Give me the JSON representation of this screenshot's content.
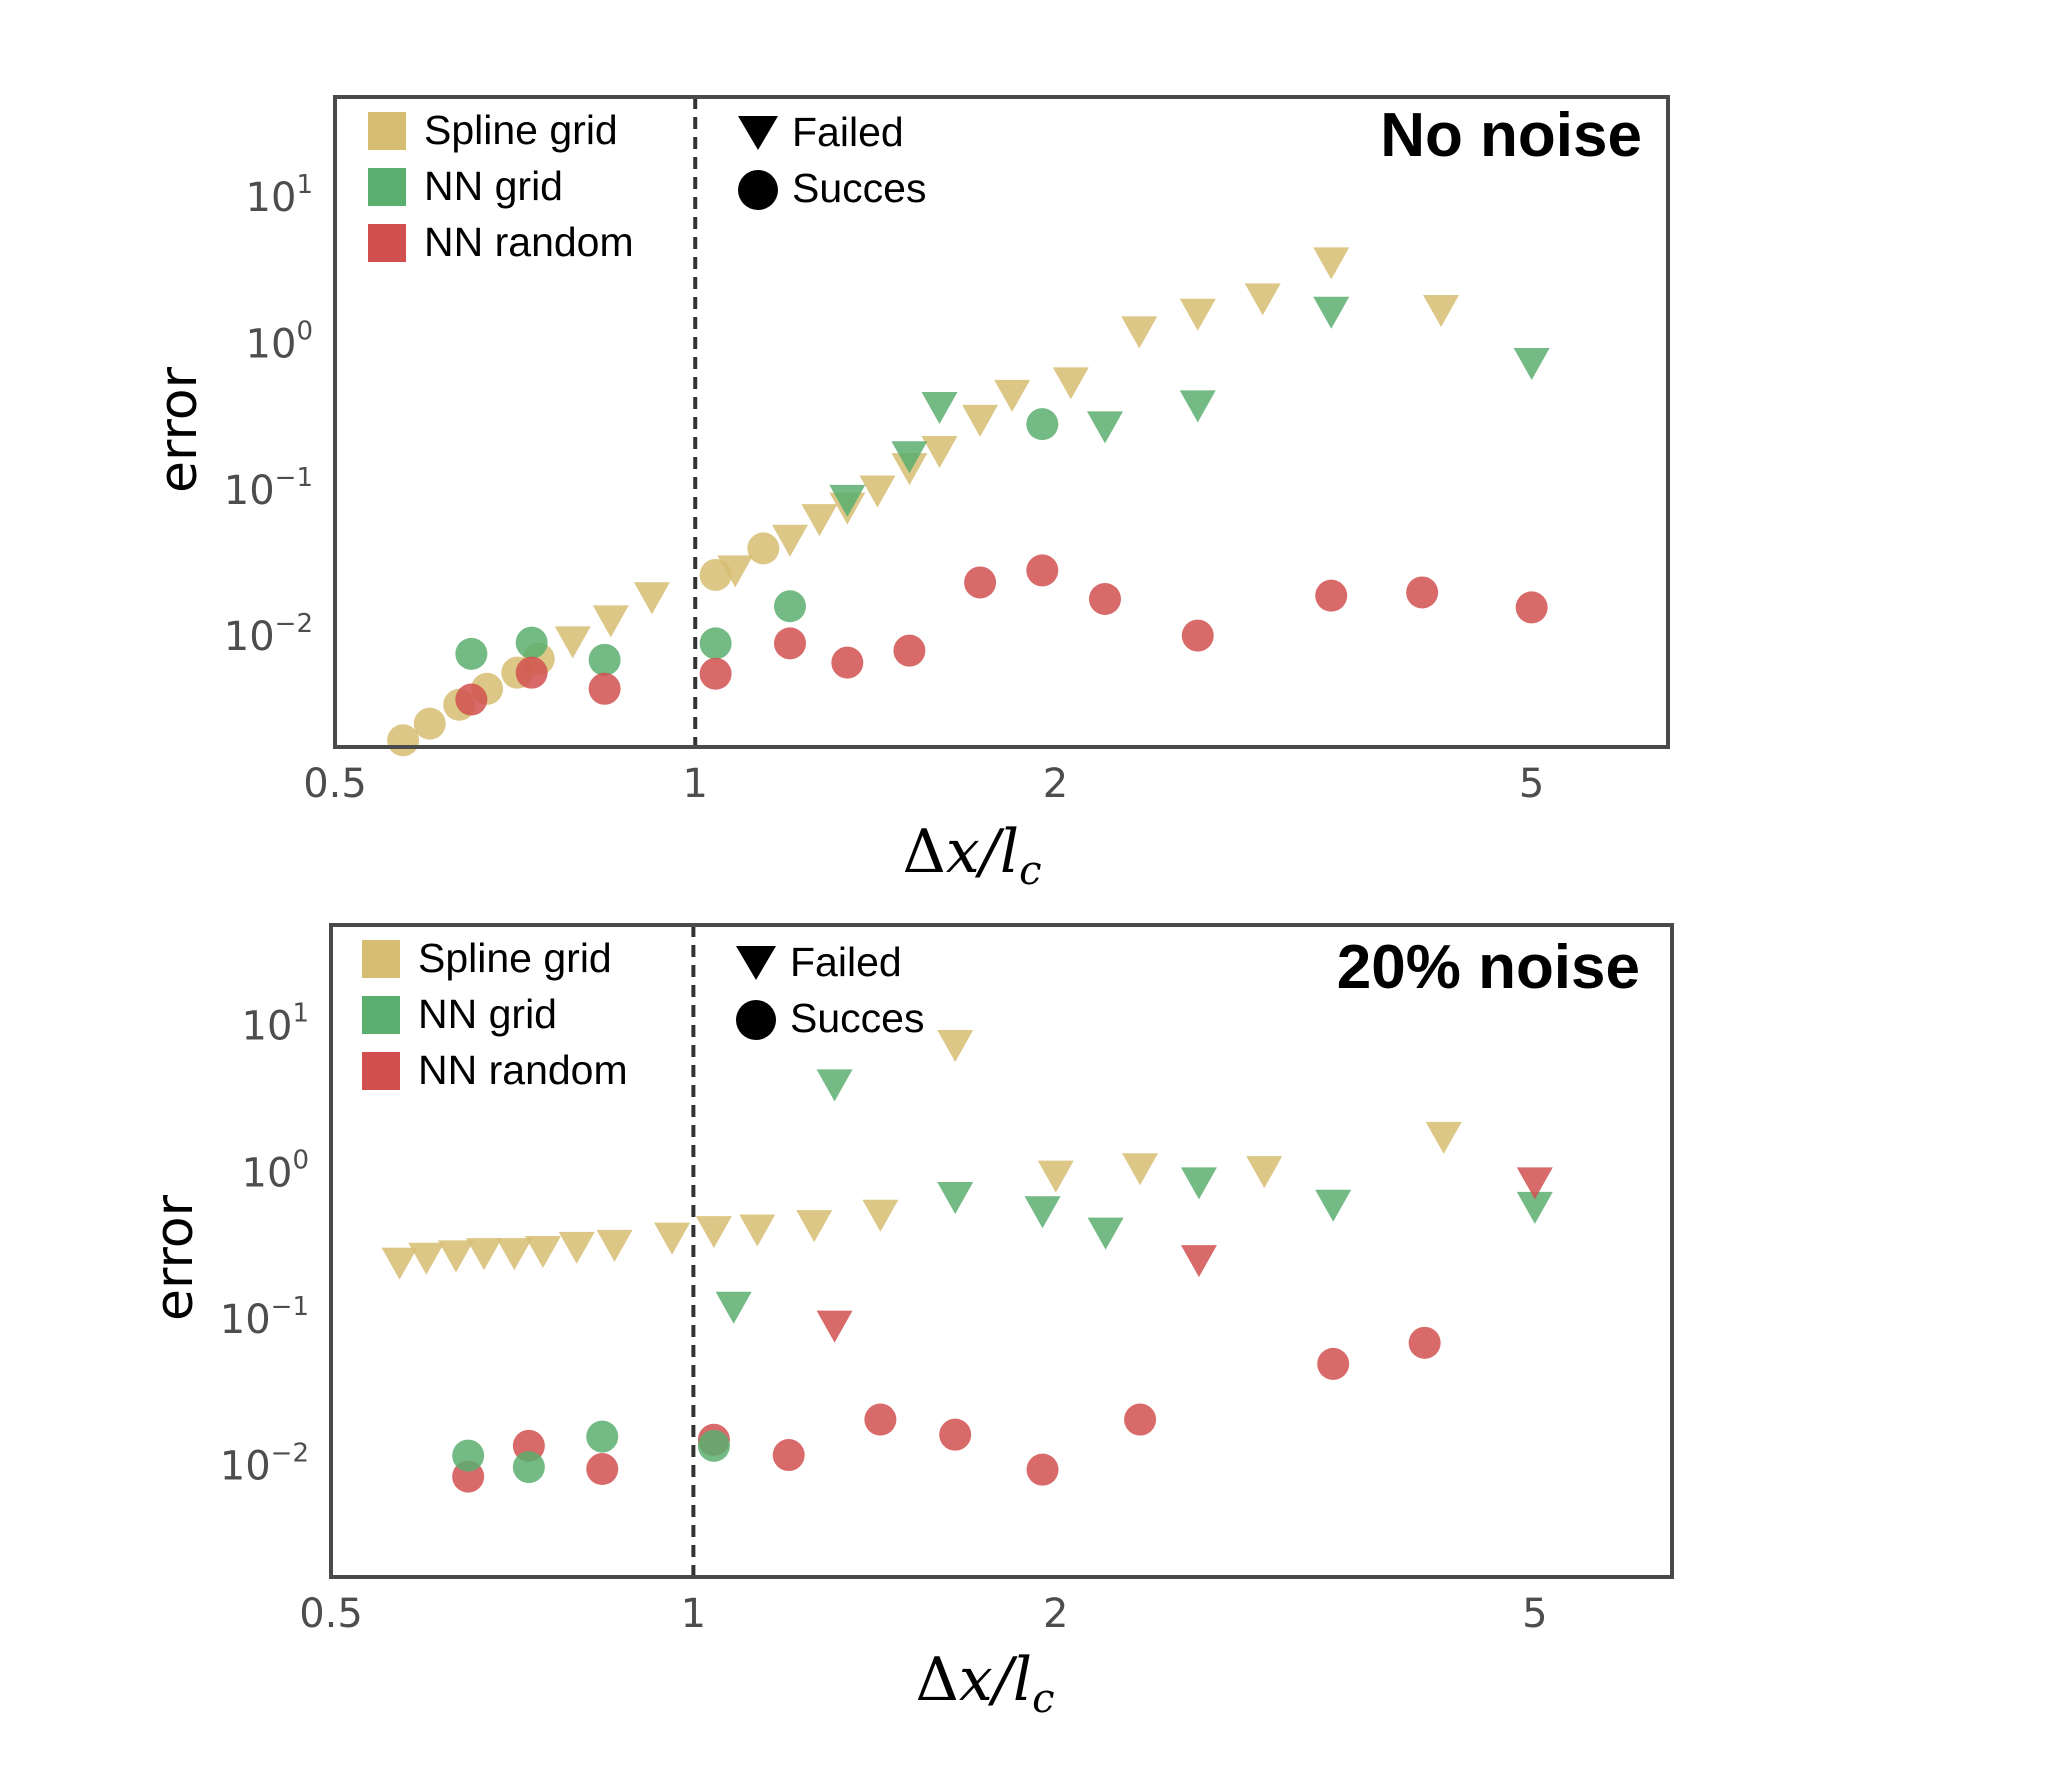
{
  "colors": {
    "spline_grid": "#d6bd72",
    "nn_grid": "#5aae6e",
    "nn_random": "#d1504f",
    "frame": "#4a4a4a",
    "vline": "#333333"
  },
  "chart_data": [
    {
      "type": "scatter",
      "title": "No noise",
      "xlabel": "Δx/l_c",
      "ylabel": "error",
      "xscale": "log",
      "yscale": "log",
      "xlim": [
        0.5,
        6.5
      ],
      "ylim": [
        0.0018,
        50
      ],
      "x_ticks": [
        "0.5",
        "1",
        "2",
        "5"
      ],
      "y_ticks": [
        {
          "base": "10",
          "exp": "−2"
        },
        {
          "base": "10",
          "exp": "−1"
        },
        {
          "base": "10",
          "exp": "0"
        },
        {
          "base": "10",
          "exp": "1"
        }
      ],
      "reference_line_x": 1,
      "legend_series": [
        "Spline grid",
        "NN grid",
        "NN random"
      ],
      "legend_markers": [
        "Failed",
        "Succes"
      ],
      "series": [
        {
          "name": "Spline grid",
          "color_key": "spline_grid",
          "points": [
            {
              "x": 0.57,
              "y": 0.002,
              "m": "succes"
            },
            {
              "x": 0.6,
              "y": 0.0026,
              "m": "succes"
            },
            {
              "x": 0.635,
              "y": 0.0035,
              "m": "succes"
            },
            {
              "x": 0.67,
              "y": 0.0045,
              "m": "succes"
            },
            {
              "x": 0.71,
              "y": 0.0058,
              "m": "succes"
            },
            {
              "x": 0.74,
              "y": 0.0072,
              "m": "succes"
            },
            {
              "x": 0.79,
              "y": 0.0095,
              "m": "failed"
            },
            {
              "x": 0.85,
              "y": 0.0132,
              "m": "failed"
            },
            {
              "x": 0.92,
              "y": 0.019,
              "m": "failed"
            },
            {
              "x": 1.04,
              "y": 0.027,
              "m": "succes"
            },
            {
              "x": 1.08,
              "y": 0.029,
              "m": "failed"
            },
            {
              "x": 1.14,
              "y": 0.041,
              "m": "succes"
            },
            {
              "x": 1.2,
              "y": 0.047,
              "m": "failed"
            },
            {
              "x": 1.27,
              "y": 0.065,
              "m": "failed"
            },
            {
              "x": 1.34,
              "y": 0.078,
              "m": "failed"
            },
            {
              "x": 1.42,
              "y": 0.102,
              "m": "failed"
            },
            {
              "x": 1.51,
              "y": 0.145,
              "m": "failed"
            },
            {
              "x": 1.6,
              "y": 0.19,
              "m": "failed"
            },
            {
              "x": 1.73,
              "y": 0.31,
              "m": "failed"
            },
            {
              "x": 1.84,
              "y": 0.46,
              "m": "failed"
            },
            {
              "x": 2.06,
              "y": 0.56,
              "m": "failed"
            },
            {
              "x": 2.35,
              "y": 1.25,
              "m": "failed"
            },
            {
              "x": 2.63,
              "y": 1.65,
              "m": "failed"
            },
            {
              "x": 2.98,
              "y": 2.1,
              "m": "failed"
            },
            {
              "x": 3.4,
              "y": 3.7,
              "m": "failed"
            },
            {
              "x": 4.2,
              "y": 1.75,
              "m": "failed"
            }
          ]
        },
        {
          "name": "NN grid",
          "color_key": "nn_grid",
          "points": [
            {
              "x": 0.65,
              "y": 0.0078,
              "m": "succes"
            },
            {
              "x": 0.73,
              "y": 0.0093,
              "m": "succes"
            },
            {
              "x": 0.84,
              "y": 0.0071,
              "m": "succes"
            },
            {
              "x": 1.04,
              "y": 0.0092,
              "m": "succes"
            },
            {
              "x": 1.2,
              "y": 0.0165,
              "m": "succes"
            },
            {
              "x": 1.34,
              "y": 0.088,
              "m": "failed"
            },
            {
              "x": 1.51,
              "y": 0.175,
              "m": "failed"
            },
            {
              "x": 1.6,
              "y": 0.38,
              "m": "failed"
            },
            {
              "x": 1.95,
              "y": 0.29,
              "m": "succes"
            },
            {
              "x": 2.2,
              "y": 0.28,
              "m": "failed"
            },
            {
              "x": 2.63,
              "y": 0.39,
              "m": "failed"
            },
            {
              "x": 3.4,
              "y": 1.7,
              "m": "failed"
            },
            {
              "x": 5.0,
              "y": 0.76,
              "m": "failed"
            }
          ]
        },
        {
          "name": "NN random",
          "color_key": "nn_random",
          "points": [
            {
              "x": 0.65,
              "y": 0.0038,
              "m": "succes"
            },
            {
              "x": 0.73,
              "y": 0.0058,
              "m": "succes"
            },
            {
              "x": 0.84,
              "y": 0.0045,
              "m": "succes"
            },
            {
              "x": 1.04,
              "y": 0.0057,
              "m": "succes"
            },
            {
              "x": 1.2,
              "y": 0.0092,
              "m": "succes"
            },
            {
              "x": 1.34,
              "y": 0.0068,
              "m": "succes"
            },
            {
              "x": 1.51,
              "y": 0.0082,
              "m": "succes"
            },
            {
              "x": 1.73,
              "y": 0.024,
              "m": "succes"
            },
            {
              "x": 1.95,
              "y": 0.029,
              "m": "succes"
            },
            {
              "x": 2.2,
              "y": 0.0185,
              "m": "succes"
            },
            {
              "x": 2.63,
              "y": 0.0104,
              "m": "succes"
            },
            {
              "x": 3.4,
              "y": 0.0195,
              "m": "succes"
            },
            {
              "x": 4.05,
              "y": 0.0205,
              "m": "succes"
            },
            {
              "x": 5.0,
              "y": 0.0162,
              "m": "succes"
            }
          ]
        }
      ]
    },
    {
      "type": "scatter",
      "title": "20% noise",
      "xlabel": "Δx/l_c",
      "ylabel": "error",
      "xscale": "log",
      "yscale": "log",
      "xlim": [
        0.5,
        6.5
      ],
      "ylim": [
        0.0018,
        50
      ],
      "x_ticks": [
        "0.5",
        "1",
        "2",
        "5"
      ],
      "y_ticks": [
        {
          "base": "10",
          "exp": "−2"
        },
        {
          "base": "10",
          "exp": "−1"
        },
        {
          "base": "10",
          "exp": "0"
        },
        {
          "base": "10",
          "exp": "1"
        }
      ],
      "reference_line_x": 1,
      "legend_series": [
        "Spline grid",
        "NN grid",
        "NN random"
      ],
      "legend_markers": [
        "Failed",
        "Succes"
      ],
      "series": [
        {
          "name": "Spline grid",
          "color_key": "spline_grid",
          "points": [
            {
              "x": 0.57,
              "y": 0.25,
              "m": "failed"
            },
            {
              "x": 0.6,
              "y": 0.27,
              "m": "failed"
            },
            {
              "x": 0.635,
              "y": 0.28,
              "m": "failed"
            },
            {
              "x": 0.67,
              "y": 0.29,
              "m": "failed"
            },
            {
              "x": 0.71,
              "y": 0.29,
              "m": "failed"
            },
            {
              "x": 0.75,
              "y": 0.3,
              "m": "failed"
            },
            {
              "x": 0.8,
              "y": 0.32,
              "m": "failed"
            },
            {
              "x": 0.86,
              "y": 0.33,
              "m": "failed"
            },
            {
              "x": 0.96,
              "y": 0.37,
              "m": "failed"
            },
            {
              "x": 1.04,
              "y": 0.41,
              "m": "failed"
            },
            {
              "x": 1.13,
              "y": 0.42,
              "m": "failed"
            },
            {
              "x": 1.26,
              "y": 0.45,
              "m": "failed"
            },
            {
              "x": 1.43,
              "y": 0.53,
              "m": "failed"
            },
            {
              "x": 1.65,
              "y": 7.6,
              "m": "failed"
            },
            {
              "x": 2.0,
              "y": 0.98,
              "m": "failed"
            },
            {
              "x": 2.35,
              "y": 1.1,
              "m": "failed"
            },
            {
              "x": 2.98,
              "y": 1.05,
              "m": "failed"
            },
            {
              "x": 4.2,
              "y": 1.8,
              "m": "failed"
            }
          ]
        },
        {
          "name": "NN grid",
          "color_key": "nn_grid",
          "points": [
            {
              "x": 1.08,
              "y": 0.125,
              "m": "failed"
            },
            {
              "x": 1.31,
              "y": 4.1,
              "m": "failed"
            },
            {
              "x": 1.65,
              "y": 0.7,
              "m": "failed"
            },
            {
              "x": 1.95,
              "y": 0.56,
              "m": "failed"
            },
            {
              "x": 2.2,
              "y": 0.4,
              "m": "failed"
            },
            {
              "x": 2.63,
              "y": 0.88,
              "m": "failed"
            },
            {
              "x": 3.4,
              "y": 0.62,
              "m": "failed"
            },
            {
              "x": 5.0,
              "y": 0.6,
              "m": "failed"
            }
          ]
        },
        {
          "name": "NN random",
          "color_key": "nn_random",
          "points": [
            {
              "x": 1.31,
              "y": 0.093,
              "m": "failed"
            },
            {
              "x": 2.63,
              "y": 0.26,
              "m": "failed"
            },
            {
              "x": 5.0,
              "y": 0.88,
              "m": "failed"
            },
            {
              "x": 0.65,
              "y": 0.0087,
              "m": "succes"
            },
            {
              "x": 0.73,
              "y": 0.0141,
              "m": "succes"
            },
            {
              "x": 0.84,
              "y": 0.0098,
              "m": "succes"
            },
            {
              "x": 1.04,
              "y": 0.0155,
              "m": "succes"
            },
            {
              "x": 1.2,
              "y": 0.0122,
              "m": "succes"
            },
            {
              "x": 1.43,
              "y": 0.0213,
              "m": "succes"
            },
            {
              "x": 1.65,
              "y": 0.0168,
              "m": "succes"
            },
            {
              "x": 1.95,
              "y": 0.0097,
              "m": "succes"
            },
            {
              "x": 2.35,
              "y": 0.0213,
              "m": "succes"
            },
            {
              "x": 3.4,
              "y": 0.051,
              "m": "succes"
            },
            {
              "x": 4.05,
              "y": 0.071,
              "m": "succes"
            }
          ]
        },
        {
          "name": "NN grid",
          "color_key": "nn_grid",
          "points": [
            {
              "x": 0.65,
              "y": 0.0121,
              "m": "succes"
            },
            {
              "x": 0.73,
              "y": 0.0101,
              "m": "succes"
            },
            {
              "x": 0.84,
              "y": 0.0163,
              "m": "succes"
            },
            {
              "x": 1.04,
              "y": 0.0141,
              "m": "succes"
            }
          ]
        }
      ]
    }
  ]
}
